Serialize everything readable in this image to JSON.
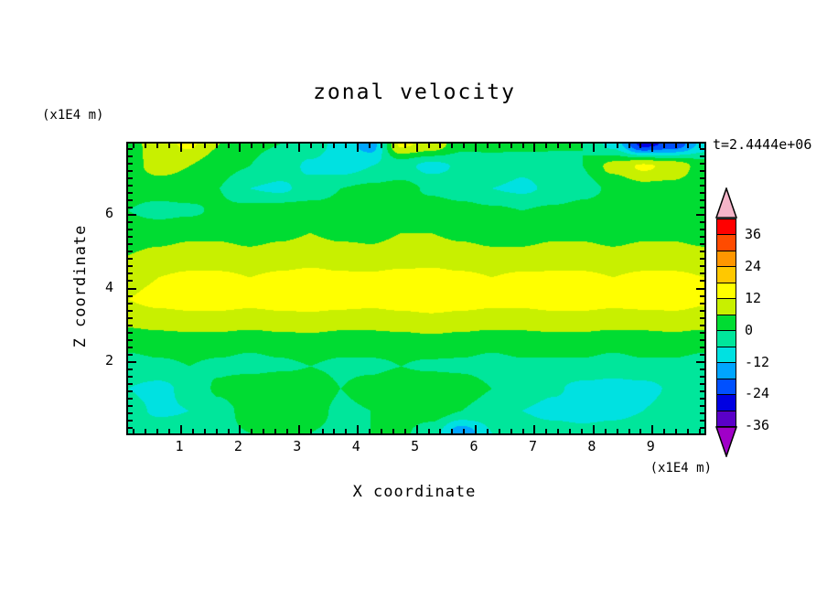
{
  "title": "zonal velocity",
  "time_label": "t=2.4444e+06",
  "x_axis": {
    "label": "X coordinate",
    "unit": "(x1E4 m)",
    "major_ticks": [
      1,
      2,
      3,
      4,
      5,
      6,
      7,
      8,
      9
    ],
    "minor_step": 0.2,
    "range": [
      0.1,
      9.88
    ]
  },
  "z_axis": {
    "label": "Z coordinate",
    "unit": "(x1E4 m)",
    "major_ticks": [
      2,
      4,
      6
    ],
    "minor_step": 0.2,
    "range": [
      0.06,
      7.94
    ]
  },
  "colorbar": {
    "labels": [
      "36",
      "24",
      "12",
      "0",
      "-12",
      "-24",
      "-36"
    ],
    "top_value": 42,
    "bottom_value": -36,
    "level_step": 6,
    "colors_top_to_bottom": [
      "#FF0000",
      "#FF4B00",
      "#FF9600",
      "#FFC800",
      "#FFFF00",
      "#C8F000",
      "#00DC32",
      "#00E69B",
      "#00E1E1",
      "#00A5FF",
      "#0050FF",
      "#0000E1",
      "#5A00C8"
    ],
    "over_color": "#F5B4C8",
    "under_color": "#A000C8",
    "outline_color": "#000000"
  },
  "chart_data": {
    "type": "heatmap",
    "subtype": "filled-contour",
    "title": "zonal velocity",
    "xlabel": "X coordinate (x1E4 m)",
    "ylabel": "Z coordinate (x1E4 m)",
    "annotation": "t=2.4444e+06",
    "xlim": [
      0.1,
      9.88
    ],
    "ylim": [
      0.06,
      7.94
    ],
    "contour_interval": 6,
    "levels_desc": [
      42,
      36,
      30,
      24,
      18,
      12,
      6,
      0,
      -6,
      -12,
      -18,
      -24,
      -30,
      -36
    ],
    "x": [
      0.1,
      0.61,
      1.13,
      1.64,
      2.16,
      2.67,
      3.19,
      3.7,
      4.22,
      4.73,
      5.25,
      5.76,
      6.28,
      6.79,
      7.31,
      7.82,
      8.34,
      8.85,
      9.37,
      9.88
    ],
    "z": [
      7.94,
      7.33,
      6.73,
      6.12,
      5.52,
      4.91,
      4.3,
      3.7,
      3.09,
      2.49,
      1.88,
      1.27,
      0.67,
      0.06
    ],
    "values": [
      [
        3,
        10,
        13,
        6,
        1,
        0,
        -3,
        -8,
        -15,
        13,
        10,
        2,
        1,
        2,
        1,
        0,
        -8,
        -26,
        -22,
        -10
      ],
      [
        4,
        8,
        6,
        2,
        0,
        -3,
        -7,
        -9,
        -6,
        -4,
        -8,
        -5,
        -2,
        -5,
        -3,
        0,
        8,
        13,
        10,
        3
      ],
      [
        2,
        3,
        3,
        0,
        -6,
        -7,
        -4,
        0,
        1,
        2,
        -1,
        -3,
        -6,
        -7,
        -5,
        -2,
        1,
        4,
        4,
        2
      ],
      [
        0,
        -2,
        -1,
        1,
        2,
        3,
        3,
        2,
        2,
        3,
        3,
        2,
        1,
        0,
        1,
        2,
        3,
        3,
        2,
        1
      ],
      [
        3,
        4,
        5,
        5,
        4,
        5,
        6,
        5,
        5,
        6,
        6,
        5,
        4,
        4,
        5,
        5,
        4,
        5,
        5,
        4
      ],
      [
        6,
        7,
        8,
        8,
        7,
        8,
        9,
        8,
        7,
        8,
        9,
        8,
        7,
        7,
        8,
        8,
        7,
        8,
        8,
        7
      ],
      [
        10,
        12,
        13,
        13,
        12,
        13,
        14,
        13,
        13,
        14,
        14,
        13,
        12,
        13,
        13,
        13,
        12,
        13,
        13,
        12
      ],
      [
        12,
        14,
        15,
        15,
        14,
        15,
        16,
        15,
        14,
        15,
        16,
        15,
        14,
        14,
        15,
        15,
        14,
        15,
        15,
        13
      ],
      [
        7,
        8,
        9,
        9,
        8,
        9,
        9,
        8,
        8,
        9,
        10,
        9,
        8,
        8,
        9,
        9,
        8,
        8,
        9,
        8
      ],
      [
        1,
        2,
        2,
        2,
        1,
        2,
        3,
        2,
        2,
        2,
        3,
        2,
        1,
        2,
        2,
        2,
        1,
        2,
        2,
        1
      ],
      [
        -2,
        -1,
        0,
        -1,
        -2,
        -1,
        0,
        -1,
        -1,
        0,
        -1,
        -1,
        -2,
        -1,
        -1,
        -1,
        -2,
        -1,
        -1,
        -2
      ],
      [
        -6,
        -8,
        -4,
        1,
        5,
        6,
        4,
        0,
        2,
        5,
        6,
        3,
        0,
        -2,
        -5,
        -8,
        -9,
        -8,
        -5,
        -2
      ],
      [
        -4,
        -7,
        -6,
        -2,
        2,
        4,
        2,
        -1,
        0,
        3,
        3,
        0,
        -3,
        -6,
        -8,
        -9,
        -8,
        -6,
        -3,
        -1
      ],
      [
        0,
        -2,
        -3,
        -1,
        0,
        1,
        0,
        -1,
        0,
        1,
        -3,
        -16,
        -6,
        -2,
        -3,
        -4,
        -3,
        -2,
        -1,
        0
      ]
    ]
  }
}
